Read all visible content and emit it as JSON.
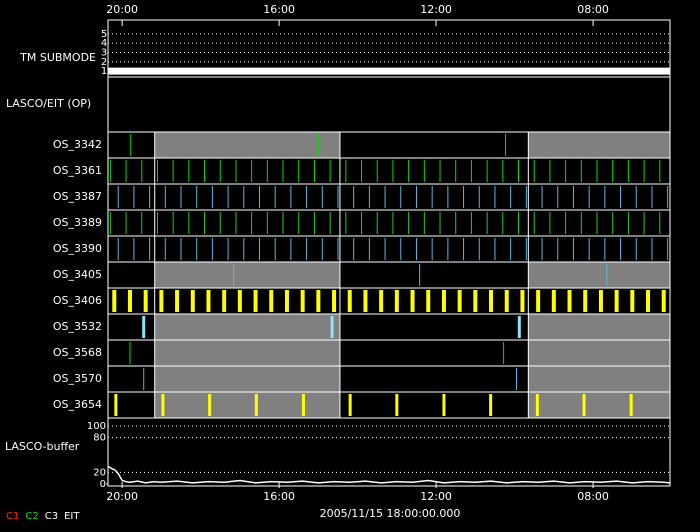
{
  "chart_data": {
    "type": "timeline",
    "xlim": [
      20.36,
      6.04
    ],
    "xticks": [
      {
        "value": 20,
        "label": "20:00"
      },
      {
        "value": 16,
        "label": "16:00"
      },
      {
        "value": 12,
        "label": "12:00"
      },
      {
        "value": 8,
        "label": "08:00"
      }
    ],
    "x_label": "2005/11/15 18:00:00.000",
    "shaded_intervals": [
      [
        19.17,
        14.45
      ],
      [
        9.65,
        6.04
      ]
    ],
    "submode": {
      "label": "TM SUBMODE",
      "ylim": [
        0.8,
        5.2
      ],
      "yticks": [
        1,
        2,
        3,
        4,
        5
      ],
      "x": [
        20.36,
        6.04
      ],
      "values": [
        1,
        1
      ],
      "color": "#ffffff"
    },
    "op_label": "LASCO/EIT (OP)",
    "rows": [
      {
        "name": "OS_3342",
        "color": "#00dd00",
        "shaded": true,
        "events": [
          19.78,
          15.0,
          10.23
        ]
      },
      {
        "name": "OS_3361",
        "color": "#00dd00",
        "shaded": false,
        "events": [
          20.3,
          19.9,
          19.5,
          19.1,
          18.7,
          18.3,
          17.9,
          17.5,
          17.1,
          16.7,
          16.3,
          15.9,
          15.5,
          15.1,
          14.7,
          14.3,
          13.9,
          13.5,
          13.1,
          12.7,
          12.3,
          11.9,
          11.5,
          11.1,
          10.7,
          10.3,
          9.9,
          9.5,
          9.1,
          8.7,
          8.3,
          7.9,
          7.5,
          7.1,
          6.7,
          6.3
        ]
      },
      {
        "name": "OS_3387",
        "color": "#5ab8e0",
        "shaded": false,
        "events": [
          20.1,
          19.7,
          19.3,
          18.9,
          18.5,
          18.1,
          17.7,
          17.3,
          16.9,
          16.5,
          16.1,
          15.7,
          15.3,
          14.9,
          14.5,
          14.1,
          13.7,
          13.3,
          12.9,
          12.5,
          12.1,
          11.7,
          11.3,
          10.9,
          10.5,
          10.1,
          9.7,
          9.3,
          8.9,
          8.5,
          8.1,
          7.7,
          7.3,
          6.9,
          6.5,
          6.1
        ]
      },
      {
        "name": "OS_3389",
        "color": "#22cc22",
        "shaded": false,
        "events": [
          20.3,
          19.9,
          19.5,
          19.1,
          18.7,
          18.3,
          17.9,
          17.5,
          17.1,
          16.7,
          16.3,
          15.9,
          15.5,
          15.1,
          14.7,
          14.3,
          13.9,
          13.5,
          13.1,
          12.7,
          12.3,
          11.9,
          11.5,
          11.1,
          10.7,
          10.3,
          9.9,
          9.5,
          9.1,
          8.7,
          8.3,
          7.9,
          7.5,
          7.1,
          6.7,
          6.3
        ]
      },
      {
        "name": "OS_3390",
        "color": "#5ab8e0",
        "shaded": false,
        "events": [
          20.1,
          19.7,
          19.3,
          18.9,
          18.5,
          18.1,
          17.7,
          17.3,
          16.9,
          16.5,
          16.1,
          15.7,
          15.3,
          14.9,
          14.5,
          14.1,
          13.7,
          13.3,
          12.9,
          12.5,
          12.1,
          11.7,
          11.3,
          10.9,
          10.5,
          10.1,
          9.7,
          9.3,
          8.9,
          8.5,
          8.1,
          7.7,
          7.3,
          6.9,
          6.5,
          6.1
        ]
      },
      {
        "name": "OS_3405",
        "color": "#5ab8e0",
        "shaded": true,
        "events": [
          17.16,
          12.42,
          7.65
        ]
      },
      {
        "name": "OS_3406",
        "color": "#ffff00",
        "shaded": false,
        "events": [
          20.2,
          19.8,
          19.4,
          19.0,
          18.6,
          18.2,
          17.8,
          17.4,
          17.0,
          16.6,
          16.2,
          15.8,
          15.4,
          15.0,
          14.6,
          14.2,
          13.8,
          13.4,
          13.0,
          12.6,
          12.2,
          11.8,
          11.4,
          11.0,
          10.6,
          10.2,
          9.8,
          9.4,
          9.0,
          8.6,
          8.2,
          7.8,
          7.4,
          7.0,
          6.6,
          6.2
        ]
      },
      {
        "name": "OS_3532",
        "color": "#88e4ff",
        "shaded": true,
        "events": [
          19.45,
          14.65,
          9.88
        ]
      },
      {
        "name": "OS_3568",
        "color": "#00dd00",
        "shaded": true,
        "events": [
          19.8,
          10.28
        ]
      },
      {
        "name": "OS_3570",
        "color": "#5ab8e0",
        "shaded": true,
        "events": [
          19.45,
          9.95
        ]
      },
      {
        "name": "OS_3654",
        "color": "#ffff00",
        "shaded": true,
        "events": [
          20.16,
          18.96,
          17.77,
          16.58,
          15.38,
          14.19,
          13.0,
          11.8,
          10.61,
          9.42,
          8.23,
          7.03
        ]
      }
    ],
    "buffer": {
      "label": "LASCO-buffer",
      "ylim": [
        0,
        100
      ],
      "yticks": [
        0,
        20,
        80,
        100
      ],
      "color": "#ffffff",
      "x": [
        20.36,
        20.3,
        20.25,
        20.2,
        20.15,
        20.1,
        20.05,
        20.0,
        19.9,
        19.8,
        19.6,
        19.4,
        19.2,
        19.0,
        18.6,
        18.2,
        17.8,
        17.4,
        17.0,
        16.6,
        16.2,
        15.8,
        15.4,
        15.0,
        14.6,
        14.2,
        13.8,
        13.4,
        13.0,
        12.6,
        12.2,
        11.8,
        11.4,
        11.0,
        10.6,
        10.2,
        9.8,
        9.4,
        9.0,
        8.6,
        8.2,
        7.8,
        7.4,
        7.0,
        6.6,
        6.2,
        6.04
      ],
      "values": [
        30,
        28,
        26,
        25,
        22,
        18,
        12,
        6,
        4,
        3,
        5,
        2,
        4,
        3,
        5,
        2,
        4,
        3,
        6,
        2,
        4,
        3,
        5,
        2,
        4,
        3,
        5,
        2,
        4,
        3,
        6,
        2,
        4,
        3,
        5,
        2,
        4,
        3,
        5,
        2,
        4,
        3,
        5,
        2,
        4,
        3,
        2
      ]
    },
    "legend": [
      {
        "name": "C1",
        "color": "#ff2020"
      },
      {
        "name": "C2",
        "color": "#00dd00"
      },
      {
        "name": "C3",
        "color": "#ffffff"
      },
      {
        "name": "EIT",
        "color": "#ffffff"
      }
    ],
    "shade_color": "#808080"
  }
}
